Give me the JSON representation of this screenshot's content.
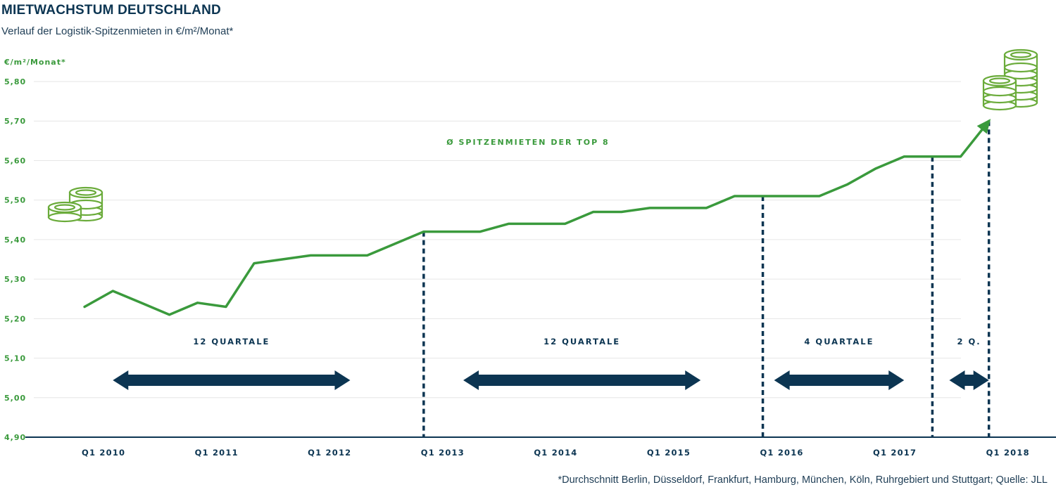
{
  "header": {
    "title": "MIETWACHSTUM DEUTSCHLAND",
    "subtitle": "Verlauf der Logistik-Spitzenmieten in €/m²/Monat*"
  },
  "footnote": "*Durchschnitt Berlin, Düsseldorf, Frankfurt, Hamburg, München, Köln, Ruhrgebiert und Stuttgart; Quelle: JLL",
  "colors": {
    "line": "#3a9a3c",
    "navy": "#0c3552",
    "grid": "#e6e6e6"
  },
  "icons": [
    "coin-stack-small-icon",
    "coin-stack-large-icon",
    "double-arrow-icon"
  ],
  "chart_data": {
    "type": "line",
    "title": "MIETWACHSTUM DEUTSCHLAND",
    "ylabel": "€/m²/Monat*",
    "xlabel": "",
    "ylim": [
      4.9,
      5.8
    ],
    "yticks": [
      "4,90",
      "5,00",
      "5,10",
      "5,20",
      "5,30",
      "5,40",
      "5,50",
      "5,60",
      "5,70",
      "5,80"
    ],
    "ytick_values": [
      4.9,
      5.0,
      5.1,
      5.2,
      5.3,
      5.4,
      5.5,
      5.6,
      5.7,
      5.8
    ],
    "xlim": [
      2009.75,
      2018.55
    ],
    "xticks": [
      "Q1 2010",
      "Q1 2011",
      "Q1 2012",
      "Q1 2013",
      "Q1 2014",
      "Q1 2015",
      "Q1 2016",
      "Q1 2017",
      "Q1 2018"
    ],
    "xtick_values": [
      2010,
      2011,
      2012,
      2013,
      2014,
      2015,
      2016,
      2017,
      2018
    ],
    "grid": true,
    "annotation": "Ø SPITZENMIETEN DER TOP 8",
    "series": [
      {
        "x": [
          2010.0,
          2010.25,
          2010.5,
          2010.75,
          2011.0,
          2011.25,
          2011.5,
          2011.75,
          2012.0,
          2012.25,
          2012.5,
          2012.75,
          2013.0,
          2013.25,
          2013.5,
          2013.75,
          2014.0,
          2014.25,
          2014.5,
          2014.75,
          2015.0,
          2015.25,
          2015.5,
          2015.75,
          2016.0,
          2016.25,
          2016.5,
          2016.75,
          2017.0,
          2017.25,
          2017.5,
          2017.75,
          2018.0
        ],
        "y": [
          5.23,
          5.27,
          5.24,
          5.21,
          5.24,
          5.23,
          5.34,
          5.35,
          5.36,
          5.36,
          5.36,
          5.39,
          5.42,
          5.42,
          5.42,
          5.44,
          5.44,
          5.44,
          5.47,
          5.47,
          5.48,
          5.48,
          5.48,
          5.51,
          5.51,
          5.51,
          5.51,
          5.54,
          5.58,
          5.61,
          5.61,
          5.61,
          5.7
        ]
      }
    ],
    "periods": [
      {
        "label": "12 QUARTALE",
        "from": 2010.25,
        "to": 2012.35
      },
      {
        "label": "12 QUARTALE",
        "from": 2013.35,
        "to": 2015.45
      },
      {
        "label": "4 QUARTALE",
        "from": 2016.1,
        "to": 2017.25
      },
      {
        "label": "2 Q.",
        "from": 2017.65,
        "to": 2018.0
      }
    ],
    "dividers": [
      2013.0,
      2016.0,
      2017.5,
      2018.0
    ]
  }
}
